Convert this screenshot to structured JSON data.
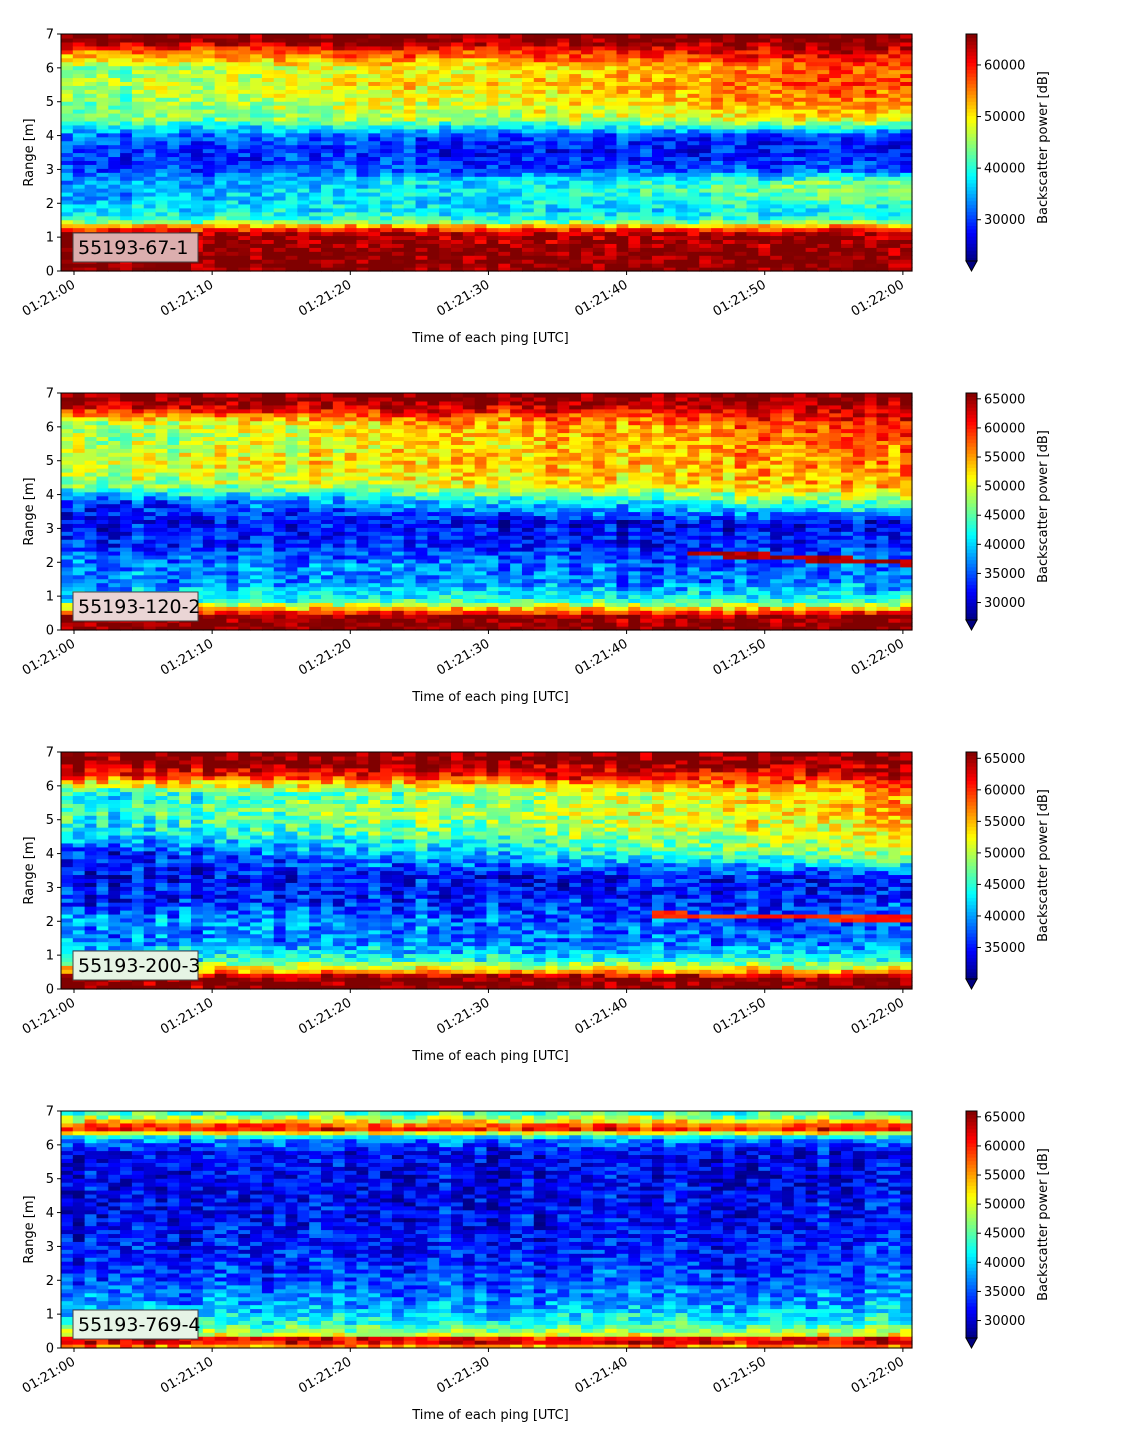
{
  "chart_data": [
    {
      "type": "heatmap",
      "id": "55193-67-1",
      "label": "55193-67-1",
      "label_box_color": "#dcaeae",
      "xlabel": "Time of each ping [UTC]",
      "ylabel": "Range [m]",
      "colorbar_label": "Backscatter power [dB]",
      "colormap": "jet",
      "xlim": [
        "01:21:00",
        "01:22:00"
      ],
      "xticks": [
        "01:21:00",
        "01:21:10",
        "01:21:20",
        "01:21:30",
        "01:21:40",
        "01:21:50",
        "01:22:00"
      ],
      "ylim": [
        0,
        7
      ],
      "yticks": [
        0,
        1,
        2,
        3,
        4,
        5,
        6,
        7
      ],
      "clim": [
        22000,
        66000
      ],
      "colorbar_ticks": [
        30000,
        40000,
        50000,
        60000
      ],
      "colorbar_extend": "min",
      "profile": [
        {
          "range_m": 0.1,
          "start": 66000,
          "end": 66000
        },
        {
          "range_m": 0.5,
          "start": 66000,
          "end": 66000
        },
        {
          "range_m": 1.1,
          "start": 64000,
          "end": 64000
        },
        {
          "range_m": 1.3,
          "start": 56000,
          "end": 56000
        },
        {
          "range_m": 1.5,
          "start": 41000,
          "end": 41000
        },
        {
          "range_m": 1.8,
          "start": 37000,
          "end": 38000
        },
        {
          "range_m": 2.2,
          "start": 34000,
          "end": 43000
        },
        {
          "range_m": 2.6,
          "start": 33000,
          "end": 45000
        },
        {
          "range_m": 3.0,
          "start": 30000,
          "end": 31000
        },
        {
          "range_m": 3.5,
          "start": 29000,
          "end": 28000
        },
        {
          "range_m": 4.0,
          "start": 32000,
          "end": 29000
        },
        {
          "range_m": 4.5,
          "start": 42000,
          "end": 50000
        },
        {
          "range_m": 5.0,
          "start": 43000,
          "end": 55000
        },
        {
          "range_m": 5.5,
          "start": 45000,
          "end": 58000
        },
        {
          "range_m": 6.0,
          "start": 43000,
          "end": 57000
        },
        {
          "range_m": 6.5,
          "start": 55000,
          "end": 63000
        },
        {
          "range_m": 6.8,
          "start": 66000,
          "end": 66000
        },
        {
          "range_m": 7.0,
          "start": 66000,
          "end": 66000
        }
      ],
      "features": []
    },
    {
      "type": "heatmap",
      "id": "55193-120-2",
      "label": "55193-120-2",
      "label_box_color": "#ead5d5",
      "xlabel": "Time of each ping [UTC]",
      "ylabel": "Range [m]",
      "colorbar_label": "Backscatter power [dB]",
      "colormap": "jet",
      "xlim": [
        "01:21:00",
        "01:22:00"
      ],
      "xticks": [
        "01:21:00",
        "01:21:10",
        "01:21:20",
        "01:21:30",
        "01:21:40",
        "01:21:50",
        "01:22:00"
      ],
      "ylim": [
        0,
        7
      ],
      "yticks": [
        0,
        1,
        2,
        3,
        4,
        5,
        6,
        7
      ],
      "clim": [
        27000,
        66000
      ],
      "colorbar_ticks": [
        30000,
        35000,
        40000,
        45000,
        50000,
        55000,
        60000,
        65000
      ],
      "colorbar_extend": "min",
      "profile": [
        {
          "range_m": 0.1,
          "start": 66000,
          "end": 66000
        },
        {
          "range_m": 0.4,
          "start": 66000,
          "end": 66000
        },
        {
          "range_m": 0.6,
          "start": 56000,
          "end": 56000
        },
        {
          "range_m": 0.9,
          "start": 42000,
          "end": 43000
        },
        {
          "range_m": 1.4,
          "start": 37000,
          "end": 37000
        },
        {
          "range_m": 1.9,
          "start": 38000,
          "end": 35000
        },
        {
          "range_m": 2.5,
          "start": 33000,
          "end": 33000
        },
        {
          "range_m": 3.2,
          "start": 32000,
          "end": 31000
        },
        {
          "range_m": 3.8,
          "start": 33000,
          "end": 47000
        },
        {
          "range_m": 4.3,
          "start": 47000,
          "end": 55000
        },
        {
          "range_m": 5.0,
          "start": 50000,
          "end": 56000
        },
        {
          "range_m": 5.6,
          "start": 47000,
          "end": 58000
        },
        {
          "range_m": 6.1,
          "start": 48000,
          "end": 60000
        },
        {
          "range_m": 6.5,
          "start": 60000,
          "end": 63000
        },
        {
          "range_m": 6.8,
          "start": 66000,
          "end": 66000
        },
        {
          "range_m": 7.0,
          "start": 66000,
          "end": 66000
        }
      ],
      "features": [
        {
          "t0": 44,
          "t1": 60,
          "r0": 2.3,
          "r1": 2.0,
          "value": 64000
        }
      ]
    },
    {
      "type": "heatmap",
      "id": "55193-200-3",
      "label": "55193-200-3",
      "label_box_color": "#e6f4e4",
      "xlabel": "Time of each ping [UTC]",
      "ylabel": "Range [m]",
      "colorbar_label": "Backscatter power [dB]",
      "colormap": "jet",
      "xlim": [
        "01:21:00",
        "01:22:00"
      ],
      "xticks": [
        "01:21:00",
        "01:21:10",
        "01:21:20",
        "01:21:30",
        "01:21:40",
        "01:21:50",
        "01:22:00"
      ],
      "ylim": [
        0,
        7
      ],
      "yticks": [
        0,
        1,
        2,
        3,
        4,
        5,
        6,
        7
      ],
      "clim": [
        30000,
        66000
      ],
      "colorbar_ticks": [
        35000,
        40000,
        45000,
        50000,
        55000,
        60000,
        65000
      ],
      "colorbar_extend": "min",
      "profile": [
        {
          "range_m": 0.1,
          "start": 66000,
          "end": 66000
        },
        {
          "range_m": 0.35,
          "start": 66000,
          "end": 66000
        },
        {
          "range_m": 0.55,
          "start": 55000,
          "end": 55000
        },
        {
          "range_m": 0.9,
          "start": 44000,
          "end": 44000
        },
        {
          "range_m": 1.4,
          "start": 39000,
          "end": 39000
        },
        {
          "range_m": 2.0,
          "start": 40000,
          "end": 37000
        },
        {
          "range_m": 2.6,
          "start": 35000,
          "end": 36000
        },
        {
          "range_m": 3.3,
          "start": 34000,
          "end": 35000
        },
        {
          "range_m": 4.0,
          "start": 34000,
          "end": 50000
        },
        {
          "range_m": 4.6,
          "start": 42000,
          "end": 53000
        },
        {
          "range_m": 5.2,
          "start": 45000,
          "end": 55000
        },
        {
          "range_m": 5.8,
          "start": 43000,
          "end": 55000
        },
        {
          "range_m": 6.3,
          "start": 60000,
          "end": 62000
        },
        {
          "range_m": 6.7,
          "start": 66000,
          "end": 66000
        },
        {
          "range_m": 7.0,
          "start": 66000,
          "end": 66000
        }
      ],
      "features": [
        {
          "t0": 42,
          "t1": 60,
          "r0": 2.2,
          "r1": 2.1,
          "value": 60000
        }
      ]
    },
    {
      "type": "heatmap",
      "id": "55193-769-4",
      "label": "55193-769-4",
      "label_box_color": "#e6f4e6",
      "xlabel": "Time of each ping [UTC]",
      "ylabel": "Range [m]",
      "colorbar_label": "Backscatter power [dB]",
      "colormap": "jet",
      "xlim": [
        "01:21:00",
        "01:22:00"
      ],
      "xticks": [
        "01:21:00",
        "01:21:10",
        "01:21:20",
        "01:21:30",
        "01:21:40",
        "01:21:50",
        "01:22:00"
      ],
      "ylim": [
        0,
        7
      ],
      "yticks": [
        0,
        1,
        2,
        3,
        4,
        5,
        6,
        7
      ],
      "clim": [
        27000,
        66000
      ],
      "colorbar_ticks": [
        30000,
        35000,
        40000,
        45000,
        50000,
        55000,
        60000,
        65000
      ],
      "colorbar_extend": "min",
      "profile": [
        {
          "range_m": 0.05,
          "start": 55000,
          "end": 55000
        },
        {
          "range_m": 0.25,
          "start": 66000,
          "end": 66000
        },
        {
          "range_m": 0.4,
          "start": 50000,
          "end": 50000
        },
        {
          "range_m": 0.7,
          "start": 43000,
          "end": 43000
        },
        {
          "range_m": 1.2,
          "start": 38000,
          "end": 39000
        },
        {
          "range_m": 2.0,
          "start": 34000,
          "end": 35000
        },
        {
          "range_m": 3.0,
          "start": 32000,
          "end": 33000
        },
        {
          "range_m": 4.0,
          "start": 31000,
          "end": 32000
        },
        {
          "range_m": 5.0,
          "start": 31000,
          "end": 31000
        },
        {
          "range_m": 5.8,
          "start": 32000,
          "end": 31000
        },
        {
          "range_m": 6.2,
          "start": 38000,
          "end": 37000
        },
        {
          "range_m": 6.5,
          "start": 62000,
          "end": 62000
        },
        {
          "range_m": 6.75,
          "start": 50000,
          "end": 50000
        },
        {
          "range_m": 7.0,
          "start": 42000,
          "end": 42000
        }
      ],
      "features": []
    }
  ]
}
